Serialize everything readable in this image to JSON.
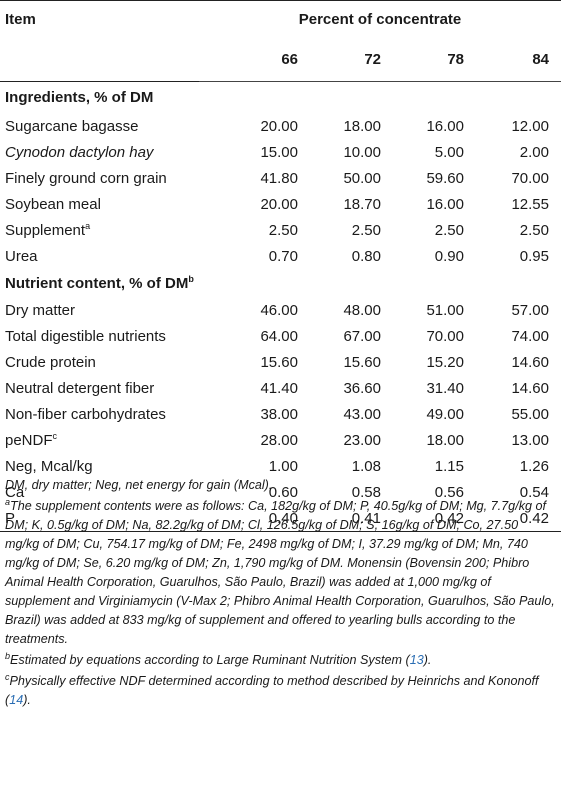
{
  "header": {
    "item_label": "Item",
    "percent_label": "Percent of concentrate",
    "levels": [
      "66",
      "72",
      "78",
      "84"
    ]
  },
  "sections": {
    "ingredients": {
      "title": "Ingredients, % of DM",
      "rows": [
        {
          "label": "Sugarcane bagasse",
          "values": [
            "20.00",
            "18.00",
            "16.00",
            "12.00"
          ]
        },
        {
          "label": "Cynodon dactylon hay",
          "values": [
            "15.00",
            "10.00",
            "5.00",
            "2.00"
          ]
        },
        {
          "label": "Finely ground corn grain",
          "values": [
            "41.80",
            "50.00",
            "59.60",
            "70.00"
          ]
        },
        {
          "label": "Soybean meal",
          "values": [
            "20.00",
            "18.70",
            "16.00",
            "12.55"
          ]
        },
        {
          "label": "Supplement",
          "sup": "a",
          "values": [
            "2.50",
            "2.50",
            "2.50",
            "2.50"
          ]
        },
        {
          "label": "Urea",
          "values": [
            "0.70",
            "0.80",
            "0.90",
            "0.95"
          ]
        }
      ]
    },
    "nutrients": {
      "title": "Nutrient content, % of DM",
      "title_sup": "b",
      "rows": [
        {
          "label": "Dry matter",
          "values": [
            "46.00",
            "48.00",
            "51.00",
            "57.00"
          ]
        },
        {
          "label": "Total digestible nutrients",
          "values": [
            "64.00",
            "67.00",
            "70.00",
            "74.00"
          ]
        },
        {
          "label": "Crude protein",
          "values": [
            "15.60",
            "15.60",
            "15.20",
            "14.60"
          ]
        },
        {
          "label": "Neutral detergent fiber",
          "values": [
            "41.40",
            "36.60",
            "31.40",
            "14.60"
          ]
        },
        {
          "label": "Non-fiber carbohydrates",
          "values": [
            "38.00",
            "43.00",
            "49.00",
            "55.00"
          ]
        },
        {
          "label": "peNDF",
          "sup": "c",
          "values": [
            "28.00",
            "23.00",
            "18.00",
            "13.00"
          ]
        },
        {
          "label": "Neg, Mcal/kg",
          "values": [
            "1.00",
            "1.08",
            "1.15",
            "1.26"
          ]
        },
        {
          "label": "Ca",
          "values": [
            "0.60",
            "0.58",
            "0.56",
            "0.54"
          ]
        },
        {
          "label": "P",
          "values": [
            "0.40",
            "0.41",
            "0.42",
            "0.42"
          ]
        }
      ]
    }
  },
  "footnotes": {
    "abbrev": "DM, dry matter; Neg, net energy for gain (Mcal).",
    "a_mark": "a",
    "a_text": "The supplement contents were as follows: Ca, 182g/kg of DM; P, 40.5g/kg of DM; Mg, 7.7g/kg of DM; K, 0.5g/kg of DM; Na, 82.2g/kg of DM; Cl, 126.5g/kg of DM; S, 16g/kg of DM; Co, 27.50 mg/kg of DM; Cu, 754.17 mg/kg of DM; Fe, 2498 mg/kg of DM; I, 37.29 mg/kg of DM; Mn, 740 mg/kg of DM; Se, 6.20 mg/kg of DM; Zn, 1,790 mg/kg of DM. Monensin (Bovensin 200; Phibro Animal Health Corporation, Guarulhos, São Paulo, Brazil) was added at 1,000 mg/kg of supplement and Virginiamycin (V-Max 2; Phibro Animal Health Corporation, Guarulhos, São Paulo, Brazil) was added at 833 mg/kg of supplement and offered to yearling bulls according to the treatments.",
    "b_mark": "b",
    "b_text": "Estimated by equations according to Large Ruminant Nutrition System (",
    "b_ref": "13",
    "b_end": ").",
    "c_mark": "c",
    "c_text": "Physically effective NDF determined according to method described by Heinrichs and Kononoff (",
    "c_ref": "14",
    "c_end": ")."
  }
}
